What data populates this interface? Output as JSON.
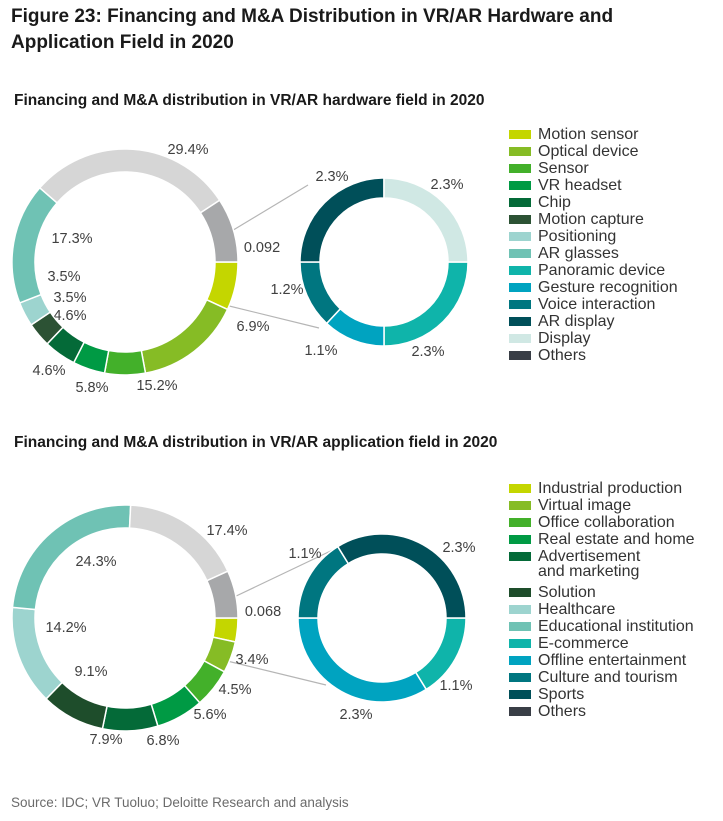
{
  "figure_title": "Figure 23: Financing and M&A Distribution in VR/AR Hardware and Application Field in 2020",
  "source": "Source: IDC; VR Tuoluo; Deloitte Research and analysis",
  "chart_data": [
    {
      "type": "pie",
      "style": "donut with bar-of-pie breakout",
      "title": "Financing and M&A distribution in VR/AR hardware field in 2020",
      "legend_position": "right",
      "main": {
        "slices": [
          {
            "name": "Motion sensor",
            "value": 6.9,
            "label": "6.9%",
            "color": "#c4d600"
          },
          {
            "name": "Optical device",
            "value": 15.2,
            "label": "15.2%",
            "color": "#86bc25"
          },
          {
            "name": "Sensor",
            "value": 5.8,
            "label": "5.8%",
            "color": "#43b02a"
          },
          {
            "name": "VR headset",
            "value": 4.6,
            "label": "4.6%",
            "color": "#009a44"
          },
          {
            "name": "Chip",
            "value": 4.6,
            "label": "4.6%",
            "color": "#046a38"
          },
          {
            "name": "Motion capture",
            "value": 3.5,
            "label": "3.5%",
            "color": "#2c5234"
          },
          {
            "name": "Positioning",
            "value": 3.5,
            "label": "3.5%",
            "color": "#9dd4cf"
          },
          {
            "name": "AR glasses",
            "value": 17.3,
            "label": "17.3%",
            "color": "#6fc2b4"
          },
          {
            "name": "Display",
            "value": 29.4,
            "label": "29.4%",
            "color": "#d6d6d6"
          },
          {
            "name": "Others",
            "value": 9.2,
            "label": "0.092",
            "color": "#a7a8aa"
          }
        ]
      },
      "breakout": {
        "of": "Others",
        "slices": [
          {
            "name": "Panoramic device",
            "value": 2.3,
            "label": "2.3%",
            "color": "#0fb4aa"
          },
          {
            "name": "Gesture recognition",
            "value": 1.1,
            "label": "1.1%",
            "color": "#00a3c0"
          },
          {
            "name": "Voice interaction",
            "value": 1.2,
            "label": "1.2%",
            "color": "#007680"
          },
          {
            "name": "AR display",
            "value": 2.3,
            "label": "2.3%",
            "color": "#004f59"
          },
          {
            "name": "Display",
            "value": 2.3,
            "label": "2.3%",
            "color": "#d0e8e4"
          }
        ]
      },
      "legend": [
        {
          "name": "Motion sensor",
          "color": "#c4d600"
        },
        {
          "name": "Optical device",
          "color": "#86bc25"
        },
        {
          "name": "Sensor",
          "color": "#43b02a"
        },
        {
          "name": "VR headset",
          "color": "#009a44"
        },
        {
          "name": "Chip",
          "color": "#046a38"
        },
        {
          "name": "Motion capture",
          "color": "#2c5234"
        },
        {
          "name": "Positioning",
          "color": "#9dd4cf"
        },
        {
          "name": "AR glasses",
          "color": "#6fc2b4"
        },
        {
          "name": "Panoramic device",
          "color": "#0fb4aa"
        },
        {
          "name": "Gesture recognition",
          "color": "#00a3c0"
        },
        {
          "name": "Voice interaction",
          "color": "#007680"
        },
        {
          "name": "AR display",
          "color": "#004f59"
        },
        {
          "name": "Display",
          "color": "#d0e8e4"
        },
        {
          "name": "Others",
          "color": "#393e46"
        }
      ]
    },
    {
      "type": "pie",
      "style": "donut with bar-of-pie breakout",
      "title": "Financing and M&A distribution in VR/AR application field in 2020",
      "legend_position": "right",
      "main": {
        "slices": [
          {
            "name": "Industrial production",
            "value": 3.4,
            "label": "3.4%",
            "color": "#c4d600"
          },
          {
            "name": "Virtual image",
            "value": 4.5,
            "label": "4.5%",
            "color": "#86bc25"
          },
          {
            "name": "Office collaboration",
            "value": 5.6,
            "label": "5.6%",
            "color": "#43b02a"
          },
          {
            "name": "Real estate and home",
            "value": 6.8,
            "label": "6.8%",
            "color": "#009a44"
          },
          {
            "name": "Advertisement and marketing",
            "value": 7.9,
            "label": "7.9%",
            "color": "#046a38"
          },
          {
            "name": "Solution",
            "value": 9.1,
            "label": "9.1%",
            "color": "#1e4d2b"
          },
          {
            "name": "Healthcare",
            "value": 14.2,
            "label": "14.2%",
            "color": "#9dd4cf"
          },
          {
            "name": "Educational institution",
            "value": 24.3,
            "label": "24.3%",
            "color": "#6fc2b4"
          },
          {
            "name": "Others (grey)",
            "value": 17.4,
            "label": "17.4%",
            "color": "#d6d6d6"
          },
          {
            "name": "Others",
            "value": 6.8,
            "label": "0.068",
            "color": "#a7a8aa"
          }
        ]
      },
      "breakout": {
        "of": "Others",
        "slices": [
          {
            "name": "E-commerce",
            "value": 1.1,
            "label": "1.1%",
            "color": "#0fb4aa"
          },
          {
            "name": "Offline entertainment",
            "value": 2.3,
            "label": "2.3%",
            "color": "#00a3c0"
          },
          {
            "name": "Culture and tourism",
            "value": 1.1,
            "label": "1.1%",
            "color": "#007680"
          },
          {
            "name": "Sports",
            "value": 2.3,
            "label": "2.3%",
            "color": "#004f59"
          }
        ]
      },
      "legend": [
        {
          "name": "Industrial production",
          "color": "#c4d600"
        },
        {
          "name": "Virtual image",
          "color": "#86bc25"
        },
        {
          "name": "Office collaboration",
          "color": "#43b02a"
        },
        {
          "name": "Real estate and home",
          "color": "#009a44"
        },
        {
          "name": "Advertisement\nand marketing",
          "color": "#046a38"
        },
        {
          "name": "Solution",
          "color": "#1e4d2b"
        },
        {
          "name": "Healthcare",
          "color": "#9dd4cf"
        },
        {
          "name": "Educational institution",
          "color": "#6fc2b4"
        },
        {
          "name": "E-commerce",
          "color": "#0fb4aa"
        },
        {
          "name": "Offline entertainment",
          "color": "#00a3c0"
        },
        {
          "name": "Culture and tourism",
          "color": "#007680"
        },
        {
          "name": "Sports",
          "color": "#004f59"
        },
        {
          "name": "Others",
          "color": "#393e46"
        }
      ]
    }
  ]
}
